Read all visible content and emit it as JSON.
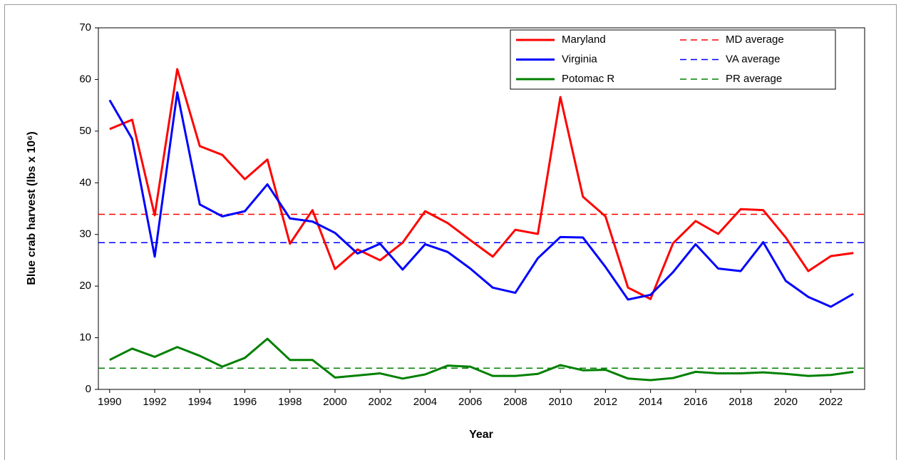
{
  "chart_data": {
    "type": "line",
    "xlabel": "Year",
    "ylabel": "Blue crab harvest (lbs x 10⁶)",
    "x": [
      1990,
      1991,
      1992,
      1993,
      1994,
      1995,
      1996,
      1997,
      1998,
      1999,
      2000,
      2001,
      2002,
      2003,
      2004,
      2005,
      2006,
      2007,
      2008,
      2009,
      2010,
      2011,
      2012,
      2013,
      2014,
      2015,
      2016,
      2017,
      2018,
      2019,
      2020,
      2021,
      2022,
      2023
    ],
    "series": [
      {
        "name": "Maryland",
        "color": "#ff0000",
        "values": [
          50.4,
          52.2,
          33.7,
          62.0,
          47.1,
          45.4,
          40.7,
          44.5,
          28.2,
          34.7,
          23.3,
          27.1,
          25.0,
          28.4,
          34.5,
          32.2,
          28.9,
          25.7,
          30.9,
          30.1,
          56.6,
          37.3,
          33.5,
          19.7,
          17.5,
          28.3,
          32.6,
          30.1,
          34.9,
          34.7,
          29.4,
          22.9,
          25.8,
          26.4
        ]
      },
      {
        "name": "Virginia",
        "color": "#0000ff",
        "values": [
          56.0,
          48.5,
          25.7,
          57.5,
          35.8,
          33.5,
          34.5,
          39.7,
          33.1,
          32.5,
          30.3,
          26.3,
          28.2,
          23.2,
          28.1,
          26.6,
          23.4,
          19.7,
          18.7,
          25.4,
          29.5,
          29.4,
          23.7,
          17.4,
          18.3,
          22.7,
          28.1,
          23.4,
          22.9,
          28.5,
          21.0,
          17.9,
          16.0,
          18.5
        ]
      },
      {
        "name": "Potomac R",
        "color": "#008000",
        "values": [
          5.7,
          7.9,
          6.3,
          8.2,
          6.5,
          4.4,
          6.1,
          9.8,
          5.7,
          5.7,
          2.3,
          2.7,
          3.1,
          2.1,
          2.9,
          4.6,
          4.4,
          2.6,
          2.6,
          3.0,
          4.7,
          3.7,
          3.8,
          2.1,
          1.8,
          2.2,
          3.4,
          3.1,
          3.1,
          3.3,
          3.0,
          2.6,
          2.8,
          3.4
        ]
      }
    ],
    "averages": [
      {
        "name": "MD average",
        "color": "#ff0000",
        "value": 33.9
      },
      {
        "name": "VA average",
        "color": "#0000ff",
        "value": 28.4
      },
      {
        "name": "PR average",
        "color": "#008000",
        "value": 4.1
      }
    ],
    "xlim": [
      1989.5,
      2023.5
    ],
    "xticks": [
      1990,
      1992,
      1994,
      1996,
      1998,
      2000,
      2002,
      2004,
      2006,
      2008,
      2010,
      2012,
      2014,
      2016,
      2018,
      2020,
      2022
    ],
    "ylim": [
      0,
      70
    ],
    "yticks": [
      0,
      10,
      20,
      30,
      40,
      50,
      60,
      70
    ],
    "legend": "top-right"
  }
}
